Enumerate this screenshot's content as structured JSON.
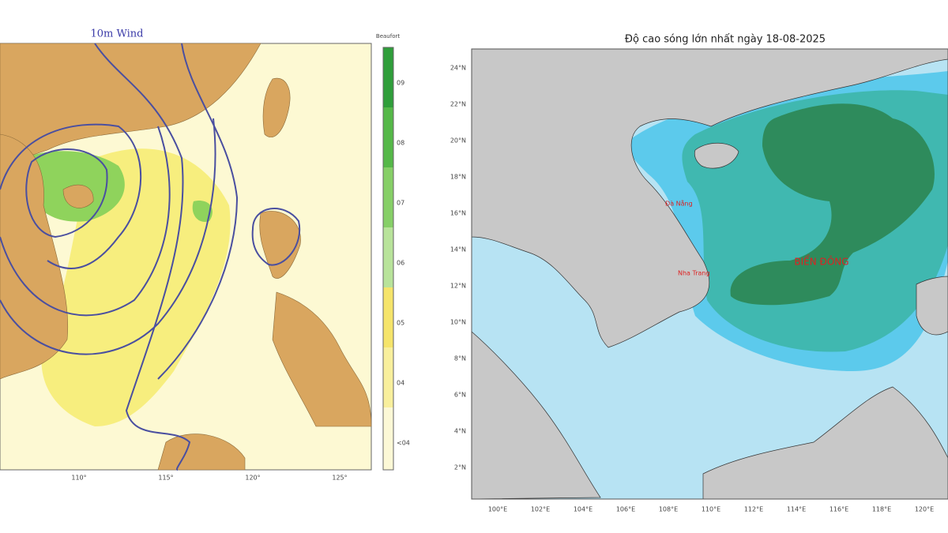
{
  "left_map": {
    "title": "10m Wind",
    "colorbar_label": "Beaufort",
    "colorbar_ticks": [
      "09",
      "08",
      "07",
      "06",
      "05",
      "04",
      "<04"
    ],
    "x_ticks": [
      "110°",
      "115°",
      "120°",
      "125°"
    ]
  },
  "right_map": {
    "title": "Độ cao sóng lớn nhất ngày 18-08-2025",
    "y_ticks": [
      "24°N",
      "22°N",
      "20°N",
      "18°N",
      "16°N",
      "14°N",
      "12°N",
      "10°N",
      "8°N",
      "6°N",
      "4°N",
      "2°N"
    ],
    "x_ticks": [
      "100°E",
      "102°E",
      "104°E",
      "106°E",
      "108°E",
      "110°E",
      "112°E",
      "114°E",
      "116°E",
      "118°E",
      "120°E"
    ],
    "sea_label": "BIỂN ĐÔNG",
    "places": [
      "Đà Nẵng",
      "Nha Trang"
    ]
  }
}
